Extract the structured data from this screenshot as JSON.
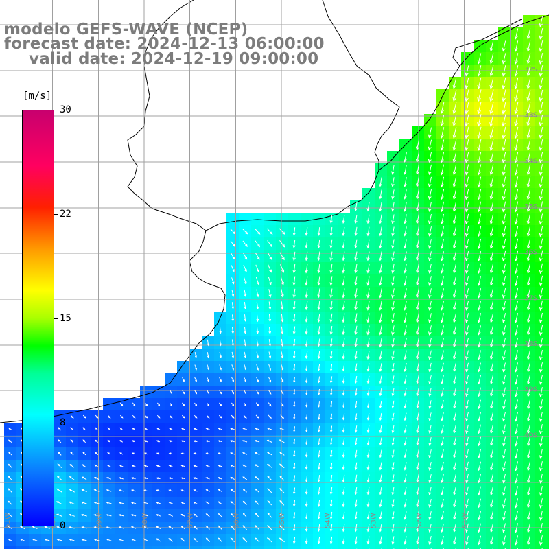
{
  "title": {
    "model": "modelo GEFS-WAVE (NCEP)",
    "forecast": "forecast date: 2024-12-13 06:00:00",
    "valid": "valid date: 2024-12-19 09:00:00"
  },
  "colorbar": {
    "units": "[m/s]",
    "labels": [
      "30",
      "22",
      "15",
      "8",
      "0"
    ],
    "stops": [
      {
        "value": 0,
        "color": "#0000ff"
      },
      {
        "value": 4,
        "color": "#0a7cff"
      },
      {
        "value": 8,
        "color": "#00ffff"
      },
      {
        "value": 11,
        "color": "#00ff96"
      },
      {
        "value": 13,
        "color": "#00ff00"
      },
      {
        "value": 15,
        "color": "#aaff00"
      },
      {
        "value": 17,
        "color": "#ffff00"
      },
      {
        "value": 20,
        "color": "#ff9900"
      },
      {
        "value": 23,
        "color": "#ff2000"
      },
      {
        "value": 26,
        "color": "#ff0060"
      },
      {
        "value": 30,
        "color": "#c8006e"
      }
    ]
  },
  "map": {
    "extent": {
      "lon_min": -62,
      "lon_max": -50,
      "lat_min": -42,
      "lat_max": -30
    },
    "latitude_labels": [
      "32S",
      "33S",
      "34S",
      "35S",
      "36S",
      "37S",
      "38S",
      "39S",
      "40S"
    ],
    "longitude_labels": [
      "61W",
      "60W",
      "59W",
      "58W",
      "57W",
      "56W",
      "55W",
      "54W",
      "53W",
      "52W",
      "51W"
    ],
    "grid_line_color": "#a0a0a0",
    "coast_color": "#000000",
    "land_color": "#ffffff",
    "arrow_color": "#ffffff"
  }
}
